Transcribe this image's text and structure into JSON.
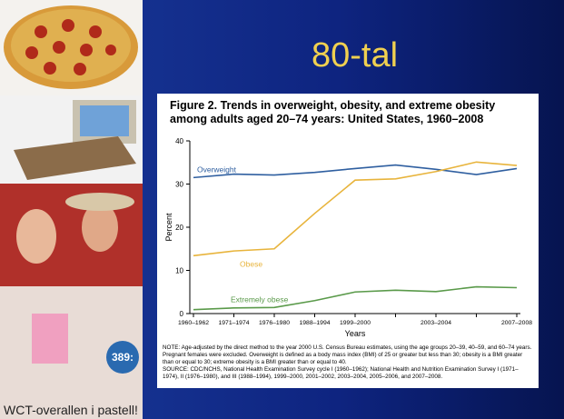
{
  "slide": {
    "title": "80-tal",
    "captions": [
      "389:",
      "WCT-overallen i pastell!"
    ]
  },
  "chart_data": {
    "type": "line",
    "title": "Figure 2. Trends in overweight, obesity, and extreme obesity among adults aged 20–74 years: United States, 1960–2008",
    "x_label": "Years",
    "y_label": "Percent",
    "categories": [
      "1960–1962",
      "1971–1974",
      "1976–1980",
      "1988–1994",
      "1999–2000",
      null,
      "2003–2004",
      null,
      "2007–2008"
    ],
    "series": [
      {
        "name": "Overweight",
        "color": "#2f5fa0",
        "values": [
          31.5,
          32.3,
          32.1,
          32.7,
          33.6,
          34.4,
          33.4,
          32.2,
          33.6
        ]
      },
      {
        "name": "Obese",
        "color": "#e8b43c",
        "values": [
          13.4,
          14.5,
          15.0,
          23.2,
          30.9,
          31.2,
          32.9,
          35.1,
          34.3
        ]
      },
      {
        "name": "Extremely obese",
        "color": "#5a9a4a",
        "values": [
          0.9,
          1.3,
          1.4,
          3.0,
          5.0,
          5.4,
          5.1,
          6.2,
          6.0
        ]
      }
    ],
    "ylim": [
      0,
      40
    ],
    "yticks": [
      0,
      10,
      20,
      30,
      40
    ],
    "notes": [
      "NOTE: Age-adjusted by the direct method to the year 2000 U.S. Census Bureau estimates, using the age groups 20–39, 40–59, and 60–74 years. Pregnant females were excluded. Overweight is defined as a body mass index (BMI) of 25 or greater but less than 30; obesity is a BMI greater than or equal to 30; extreme obesity is a BMI greater than or equal to 40.",
      "SOURCE: CDC/NCHS, National Health Examination Survey cycle I (1960–1962); National Health and Nutrition Examination Survey I (1971–1974), II (1976–1980), and III (1988–1994), 1999–2000, 2001–2002, 2003–2004, 2005–2006, and 2007–2008."
    ]
  }
}
